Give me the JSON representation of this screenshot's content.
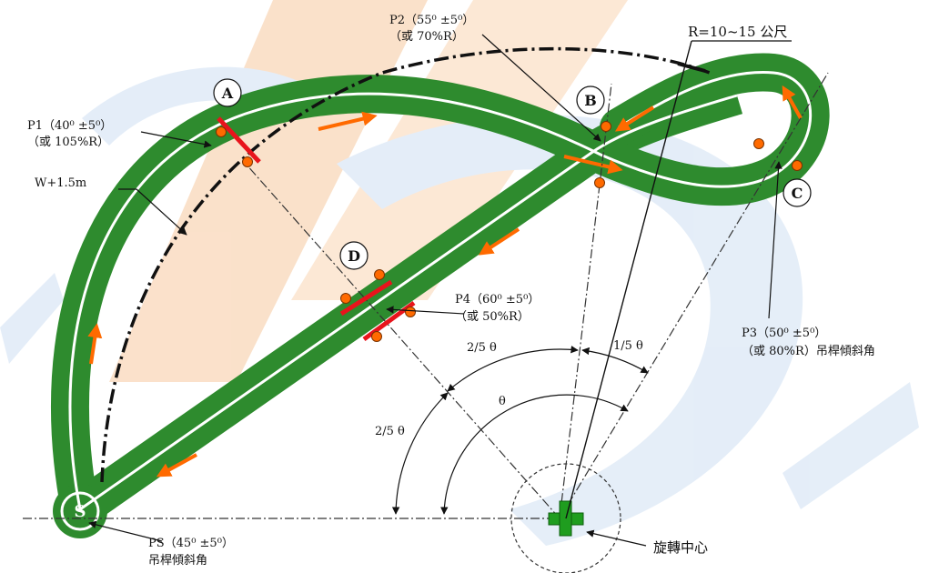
{
  "points": {
    "A": "A",
    "B": "B",
    "C": "C",
    "D": "D",
    "S": "S"
  },
  "labels": {
    "p1_line1": "P1（40⁰ ±5⁰）",
    "p1_line2": "（或 105%R）",
    "p2_line1": "P2（55⁰ ±5⁰）",
    "p2_line2": "（或 70%R）",
    "p3_line1": "P3（50⁰ ±5⁰）",
    "p3_line2": "（或 80%R）吊桿傾斜角",
    "p4_line1": "P4（60⁰ ±5⁰）",
    "p4_line2": "（或 50%R）",
    "ps_line1": "PS（45⁰ ±5⁰）",
    "ps_line2": "吊桿傾斜角",
    "radius": "R=10~15 公尺",
    "width": "W+1.5m",
    "rotation_center": "旋轉中心",
    "angle_2_5_upper": "2/5 θ",
    "angle_1_5": "1/5 θ",
    "angle_theta": "θ",
    "angle_2_5_lower": "2/5 θ"
  },
  "colors": {
    "track": "#2e8b2e",
    "lane_line": "#ffffff",
    "marker": "#ff6a00",
    "gate": "#e8141c",
    "center_cross": "#1f9d1f",
    "watermark_orange": "#f7c9a0",
    "watermark_blue": "#cfe0f3"
  }
}
